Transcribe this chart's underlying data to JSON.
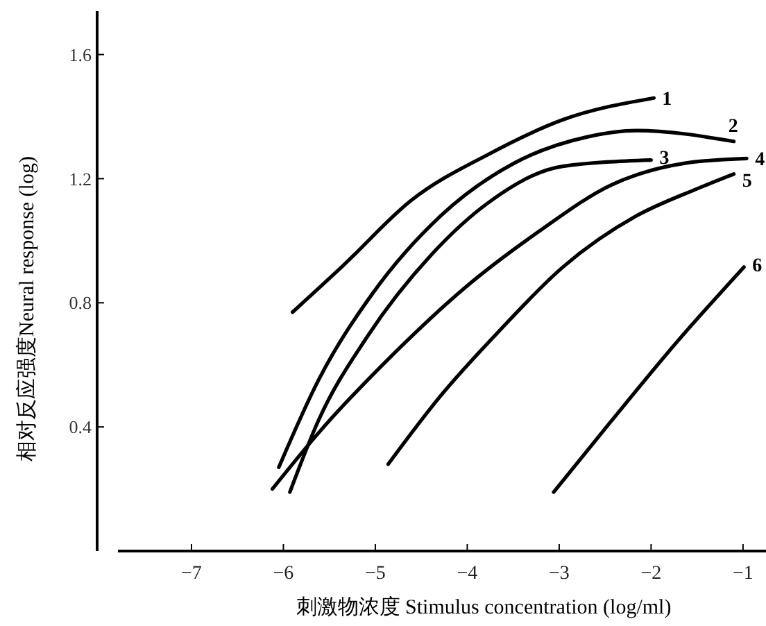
{
  "chart_data": {
    "type": "line",
    "xlabel": "刺激物浓度 Stimulus concentration (log/ml)",
    "ylabel": "相对反应强度Neural response (log)",
    "xlim": [
      -7.8,
      -0.75
    ],
    "xticks": [
      {
        "value": -7,
        "label": "−7"
      },
      {
        "value": -6,
        "label": "−6"
      },
      {
        "value": -5,
        "label": "−5"
      },
      {
        "value": -4,
        "label": "−4"
      },
      {
        "value": -3,
        "label": "−3"
      },
      {
        "value": -2,
        "label": "−2"
      },
      {
        "value": -1,
        "label": "−1"
      }
    ],
    "ylim": [
      0,
      1.74
    ],
    "yticks": [
      {
        "value": 0.4,
        "label": "0.4"
      },
      {
        "value": 0.8,
        "label": "0.8"
      },
      {
        "value": 1.2,
        "label": "1.2"
      },
      {
        "value": 1.6,
        "label": "1.6"
      }
    ],
    "grid": false,
    "marker": "none",
    "line_style": "solid",
    "series": [
      {
        "name": "1",
        "color": "#000000",
        "x": [
          -5.9,
          -5.35,
          -4.61,
          -3.76,
          -2.96,
          -1.97
        ],
        "values": [
          0.77,
          0.92,
          1.13,
          1.28,
          1.39,
          1.46
        ]
      },
      {
        "name": "2",
        "color": "#000000",
        "x": [
          -6.05,
          -5.62,
          -5.03,
          -4.29,
          -3.49,
          -2.69,
          -2.16,
          -1.1
        ],
        "values": [
          0.27,
          0.55,
          0.83,
          1.08,
          1.25,
          1.335,
          1.355,
          1.32
        ]
      },
      {
        "name": "3",
        "color": "#000000",
        "x": [
          -5.93,
          -5.62,
          -5.09,
          -4.39,
          -3.76,
          -2.96,
          -2.0
        ],
        "values": [
          0.19,
          0.42,
          0.69,
          0.955,
          1.125,
          1.24,
          1.26
        ]
      },
      {
        "name": "4",
        "color": "#000000",
        "x": [
          -6.12,
          -5.62,
          -4.82,
          -4.02,
          -3.22,
          -2.43,
          -1.63,
          -0.96
        ],
        "values": [
          0.2,
          0.38,
          0.63,
          0.85,
          1.03,
          1.18,
          1.25,
          1.265
        ]
      },
      {
        "name": "5",
        "color": "#000000",
        "x": [
          -4.86,
          -4.29,
          -3.65,
          -2.96,
          -2.16,
          -1.52,
          -1.1
        ],
        "values": [
          0.28,
          0.5,
          0.71,
          0.915,
          1.08,
          1.165,
          1.215
        ]
      },
      {
        "name": "6",
        "color": "#000000",
        "x": [
          -3.06,
          -2.43,
          -1.73,
          -0.99
        ],
        "values": [
          0.19,
          0.42,
          0.67,
          0.915
        ]
      }
    ]
  }
}
